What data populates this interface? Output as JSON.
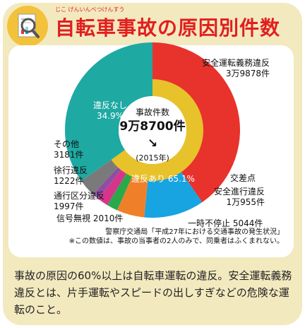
{
  "title": "自転車事故の原因別件数",
  "title_furigana": "じこ げんいんべつけんすう",
  "center": {
    "label": "事故件数",
    "total": "9万8700件",
    "year": "(2015年)",
    "arrow": "↘"
  },
  "labels": {
    "safety_duty": "安全運転義務違反",
    "safety_duty_count": "3万9878件",
    "intersection": "交差点",
    "safe_progress": "安全進行違反",
    "safe_progress_count": "1万955件",
    "stop": "一時不停止 5044件",
    "signal": "信号無視 2010件",
    "lane": "通行区分違反",
    "lane_count": "1997件",
    "slow": "徐行違反",
    "slow_count": "1222件",
    "other": "その他",
    "other_count": "3181件",
    "no_violation": "違反なし",
    "no_violation_pct": "34.9%",
    "violation": "違反あり 65.1%"
  },
  "source": {
    "line1": "警察庁交通局「平成27年における交通事故の発生状況」",
    "line2": "※この数値は、事故の当事者の2人のみで、同乗者はふくまれない。"
  },
  "body": {
    "text": "事故の原因の60%以上は自転車運転の違反。安全運転義務違反とは、片手運転やスピードの出しすぎなどの危険な運転のこと。"
  },
  "colors": {
    "no_violation": "#1fa9a3",
    "violation": "#e7c22a",
    "safety_duty": "#e8322c",
    "safe_progress": "#17a4e0",
    "stop": "#f07f2a",
    "signal": "#2aa94a",
    "lane": "#d7348c",
    "slow": "#8b4fa3",
    "other": "#7a7a7a"
  },
  "chart_data": {
    "type": "pie",
    "title": "",
    "total": 98700,
    "inner_ring": [
      {
        "name": "違反なし",
        "value": 34.9,
        "unit": "%"
      },
      {
        "name": "違反あり",
        "value": 65.1,
        "unit": "%"
      }
    ],
    "outer_ring": [
      {
        "name": "安全運転義務違反",
        "value": 39878
      },
      {
        "name": "安全進行違反",
        "value": 10955
      },
      {
        "name": "一時不停止",
        "value": 5044
      },
      {
        "name": "信号無視",
        "value": 2010
      },
      {
        "name": "通行区分違反",
        "value": 1997
      },
      {
        "name": "徐行違反",
        "value": 1222
      },
      {
        "name": "その他",
        "value": 3181
      }
    ]
  }
}
